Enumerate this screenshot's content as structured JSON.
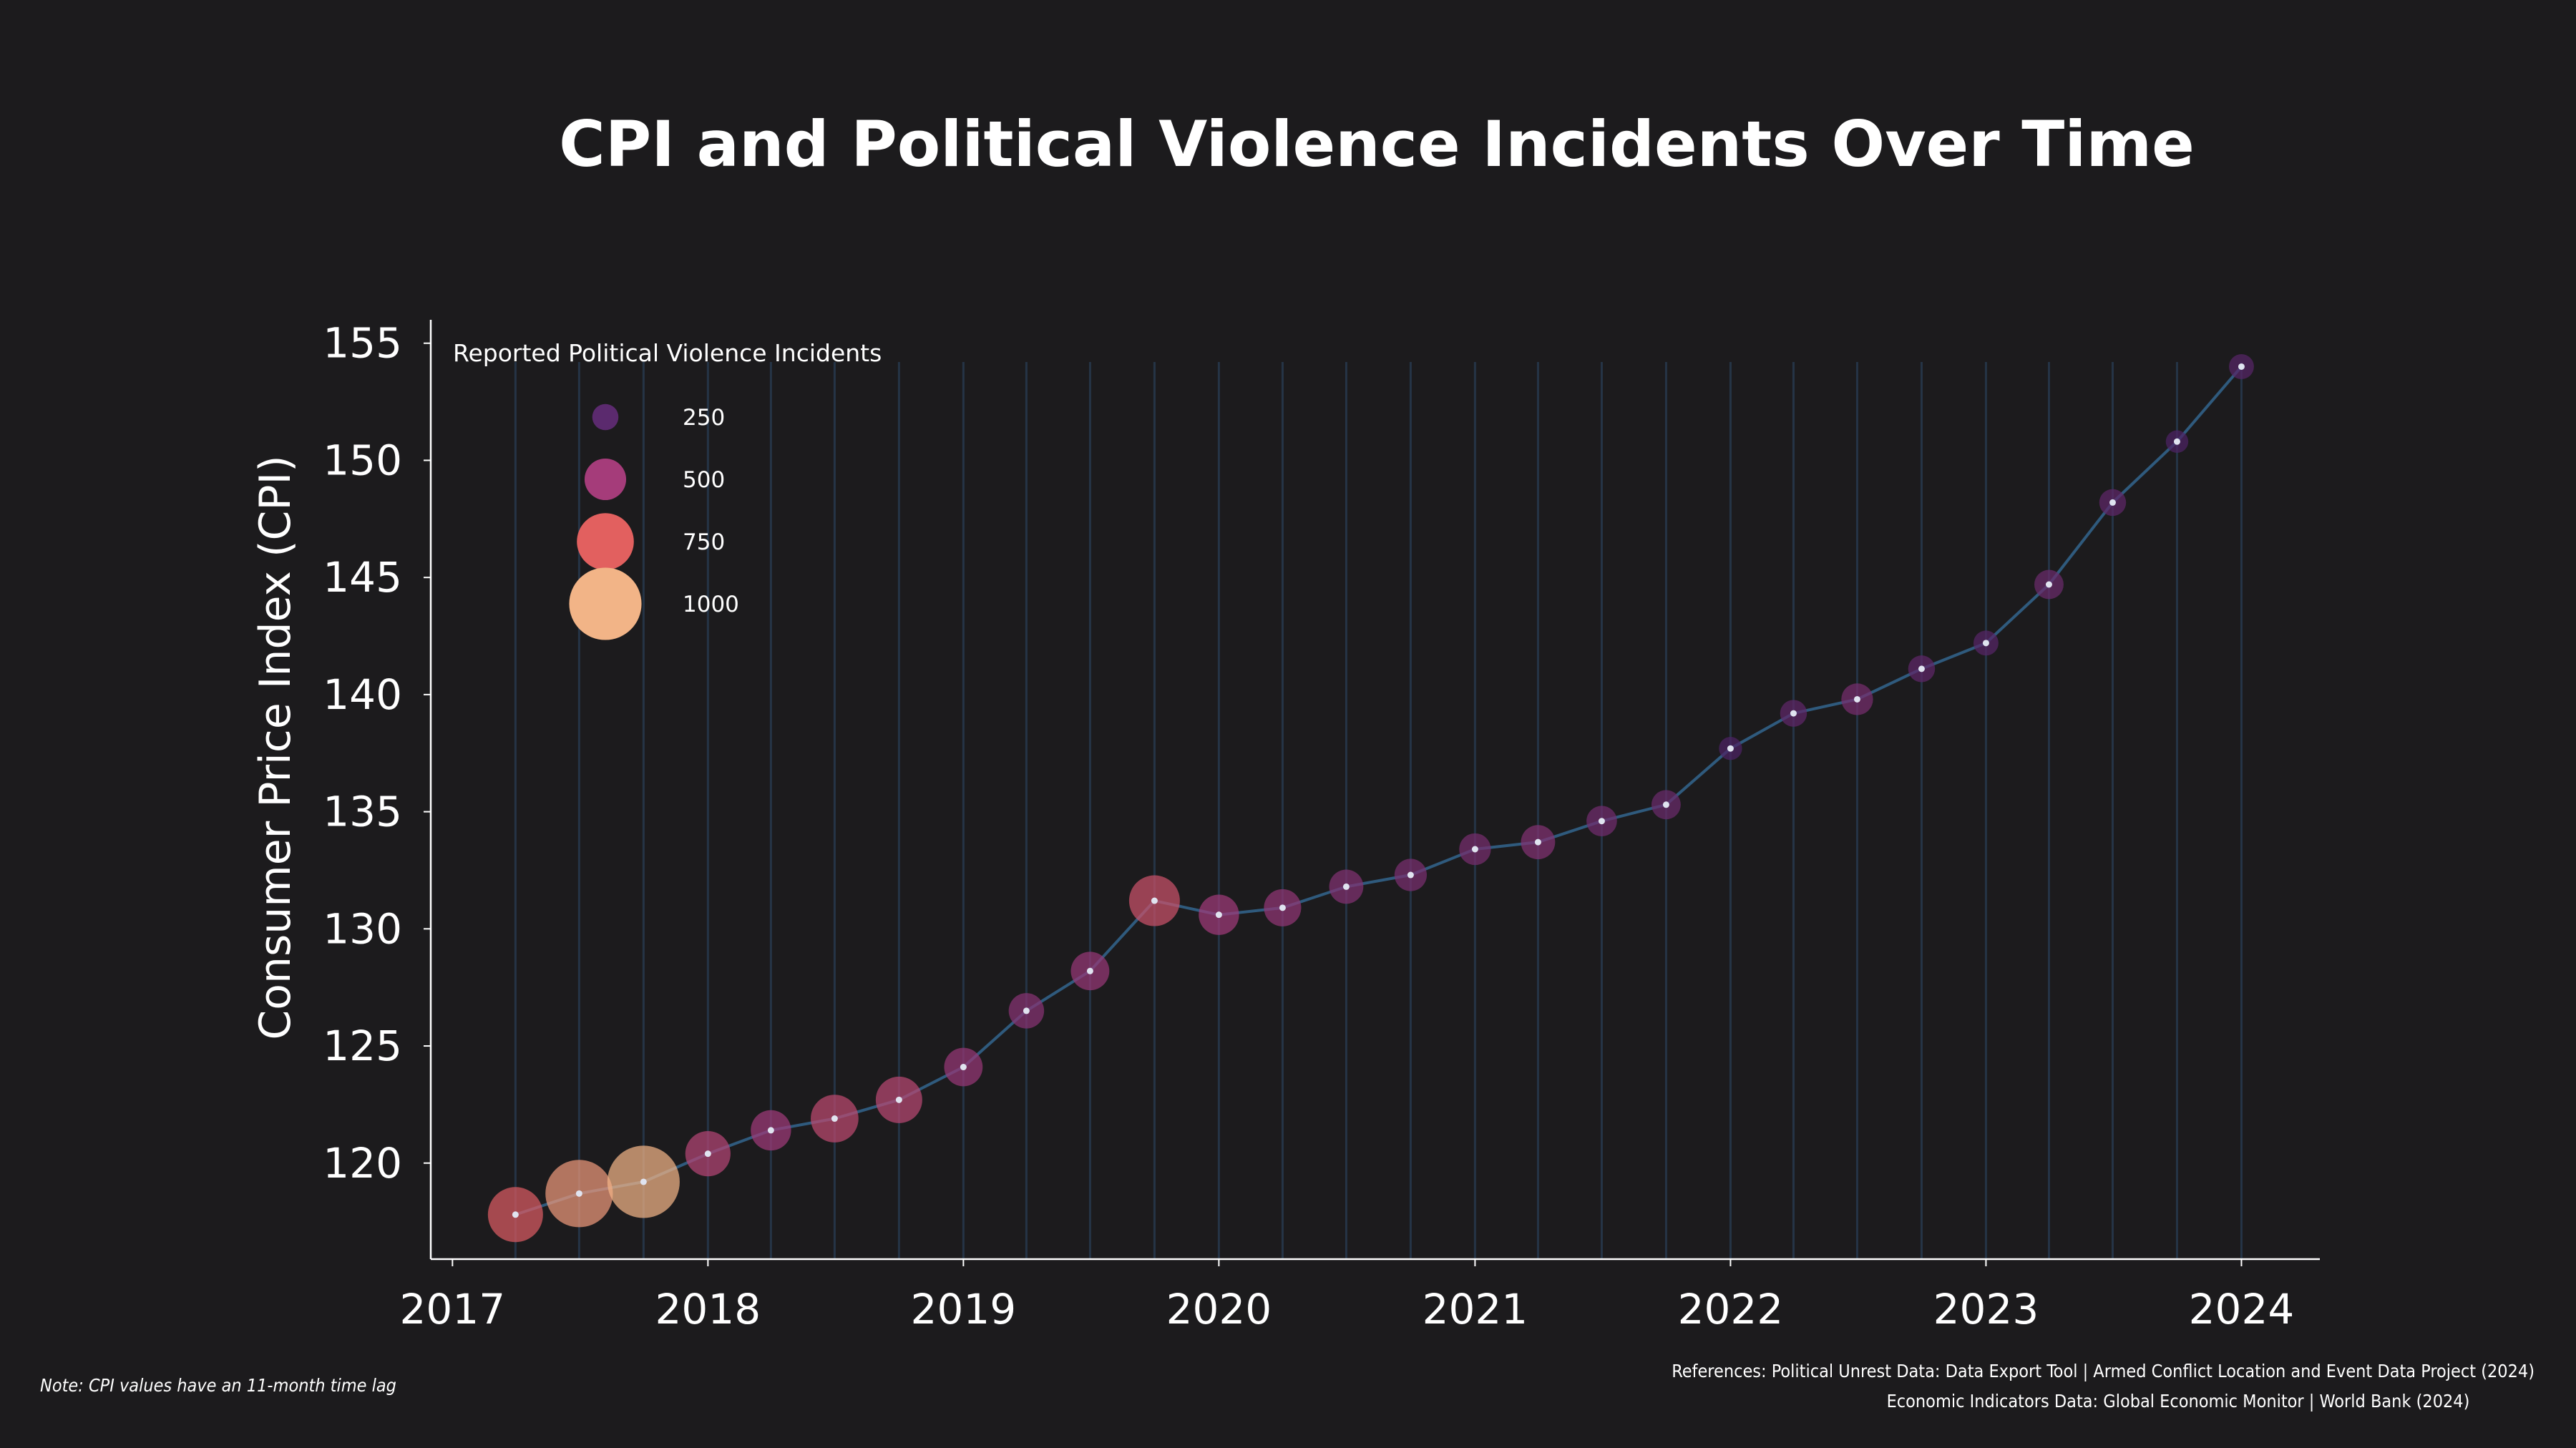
{
  "chart_data": {
    "type": "scatter",
    "title": "CPI and Political Violence Incidents Over Time",
    "ylabel": "Consumer Price Index (CPI)",
    "xlabel": "",
    "xlim": [
      "2016-12-01",
      "2024-04-22"
    ],
    "ylim": [
      115.9,
      156.0
    ],
    "x_ticks": [
      "2017",
      "2018",
      "2019",
      "2020",
      "2021",
      "2022",
      "2023",
      "2024"
    ],
    "y_ticks": [
      120,
      125,
      130,
      135,
      140,
      145,
      150,
      155
    ],
    "grid": "vertical lines at each quarter",
    "legend": {
      "title": "Reported Political Violence Incidents",
      "placement": "top-left",
      "sizes": [
        250,
        500,
        750,
        1000
      ],
      "labels": [
        "250",
        "500",
        "750",
        "1000"
      ],
      "colors": [
        "#5b2a6e",
        "#a53c7a",
        "#e2605f",
        "#f2b487"
      ]
    },
    "colors": {
      "background": "#1c1b1d",
      "line": "#2f5a7d",
      "grid": "#253446",
      "axis": "#ffffff",
      "point_center": "#e0e4f0"
    },
    "series": [
      {
        "x": [
          "2017-04-01",
          "2017-07-01",
          "2017-10-01",
          "2018-01-01",
          "2018-04-01",
          "2018-07-01",
          "2018-10-01",
          "2019-01-01",
          "2019-04-01",
          "2019-07-01",
          "2019-10-01",
          "2020-01-01",
          "2020-04-01",
          "2020-07-01",
          "2020-10-01",
          "2021-01-01",
          "2021-04-01",
          "2021-07-01",
          "2021-10-01",
          "2022-01-01",
          "2022-04-01",
          "2022-07-01",
          "2022-10-01",
          "2023-01-01",
          "2023-04-01",
          "2023-07-01",
          "2023-10-01",
          "2024-01-01"
        ],
        "cpi": [
          117.8,
          118.7,
          119.2,
          120.4,
          121.4,
          121.9,
          122.7,
          124.1,
          126.5,
          128.2,
          131.2,
          130.6,
          130.9,
          131.8,
          132.3,
          133.4,
          133.7,
          134.6,
          135.3,
          137.7,
          139.2,
          139.8,
          141.1,
          142.2,
          144.7,
          148.2,
          150.8,
          154.0
        ],
        "incidents": [
          720,
          920,
          1000,
          560,
          480,
          600,
          580,
          450,
          400,
          450,
          650,
          480,
          430,
          380,
          350,
          340,
          380,
          320,
          300,
          200,
          260,
          340,
          260,
          230,
          300,
          260,
          190,
          230
        ]
      }
    ]
  },
  "notes": {
    "time_lag": "Note: CPI values have an 11-month time lag",
    "references_1": "References: Political Unrest Data: Data Export Tool | Armed Conflict Location and Event Data Project (2024)",
    "references_2": "Economic Indicators Data: Global Economic Monitor | World Bank (2024)"
  }
}
